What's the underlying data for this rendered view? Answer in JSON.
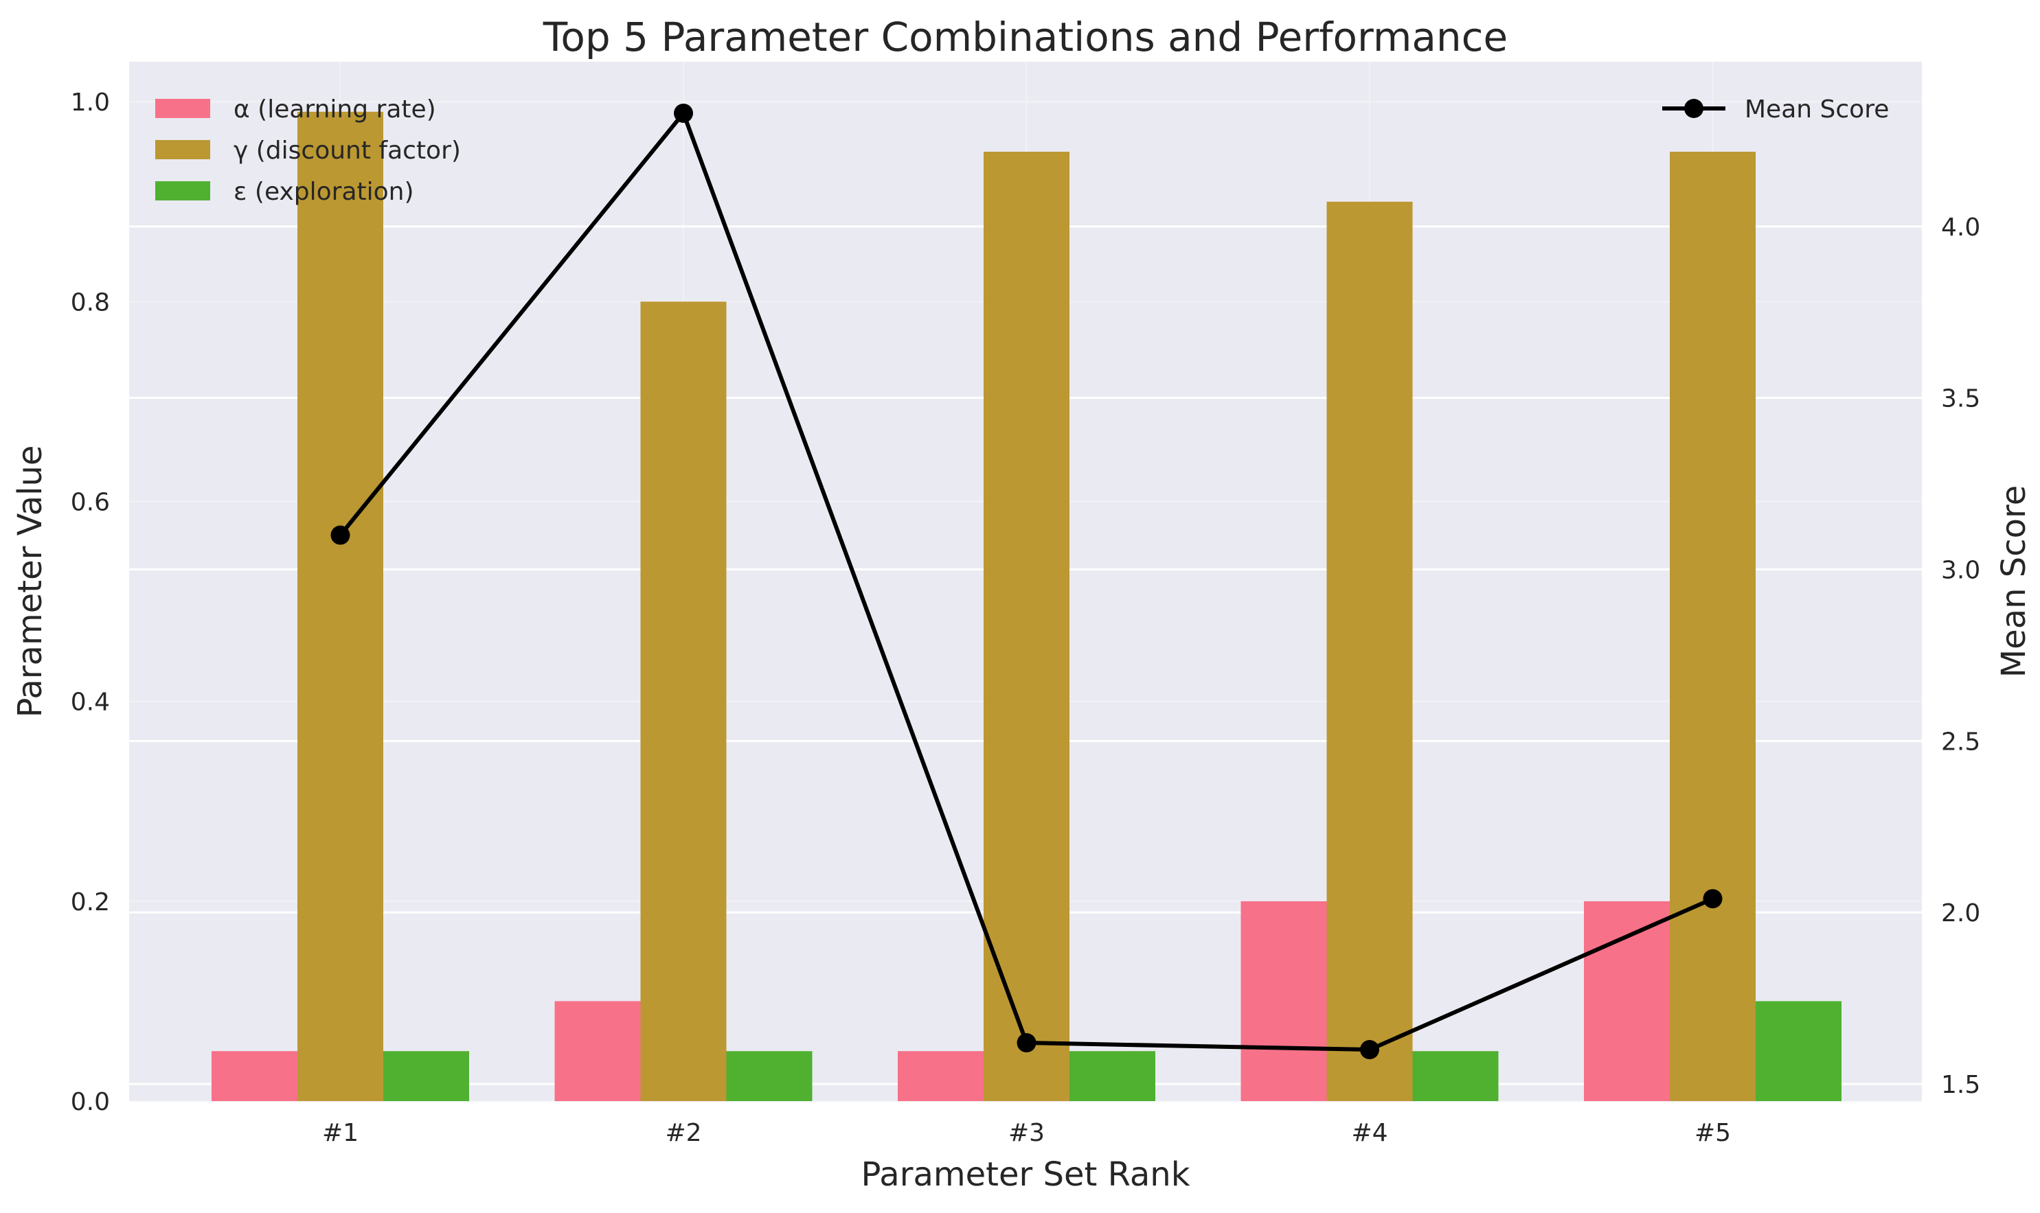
{
  "chart_data": {
    "type": "bar",
    "title": "Top 5 Parameter Combinations and Performance",
    "xlabel": "Parameter Set Rank",
    "ylabel": "Parameter Value",
    "y2label": "Mean Score",
    "categories": [
      "#1",
      "#2",
      "#3",
      "#4",
      "#5"
    ],
    "ylim": [
      0,
      1.04
    ],
    "y2lim": [
      1.45,
      4.48
    ],
    "yticks": [
      "0.0",
      "0.2",
      "0.4",
      "0.6",
      "0.8",
      "1.0"
    ],
    "y2ticks": [
      "1.5",
      "2.0",
      "2.5",
      "3.0",
      "3.5",
      "4.0"
    ],
    "grid": true,
    "series": [
      {
        "name": "α (learning rate)",
        "type": "bar",
        "color": "#f77189",
        "values": [
          0.05,
          0.1,
          0.05,
          0.2,
          0.2
        ]
      },
      {
        "name": "γ (discount factor)",
        "type": "bar",
        "color": "#bb9832",
        "values": [
          0.99,
          0.8,
          0.95,
          0.9,
          0.95
        ]
      },
      {
        "name": "ε (exploration)",
        "type": "bar",
        "color": "#50b131",
        "values": [
          0.05,
          0.05,
          0.05,
          0.05,
          0.1
        ]
      },
      {
        "name": "Mean Score",
        "type": "line",
        "axis": "right",
        "color": "#000000",
        "values": [
          3.1,
          4.33,
          1.62,
          1.6,
          2.04
        ]
      }
    ],
    "legend_left_placement": "upper-left",
    "legend_right_placement": "upper-right",
    "plot_background": "#eaeaf2"
  }
}
